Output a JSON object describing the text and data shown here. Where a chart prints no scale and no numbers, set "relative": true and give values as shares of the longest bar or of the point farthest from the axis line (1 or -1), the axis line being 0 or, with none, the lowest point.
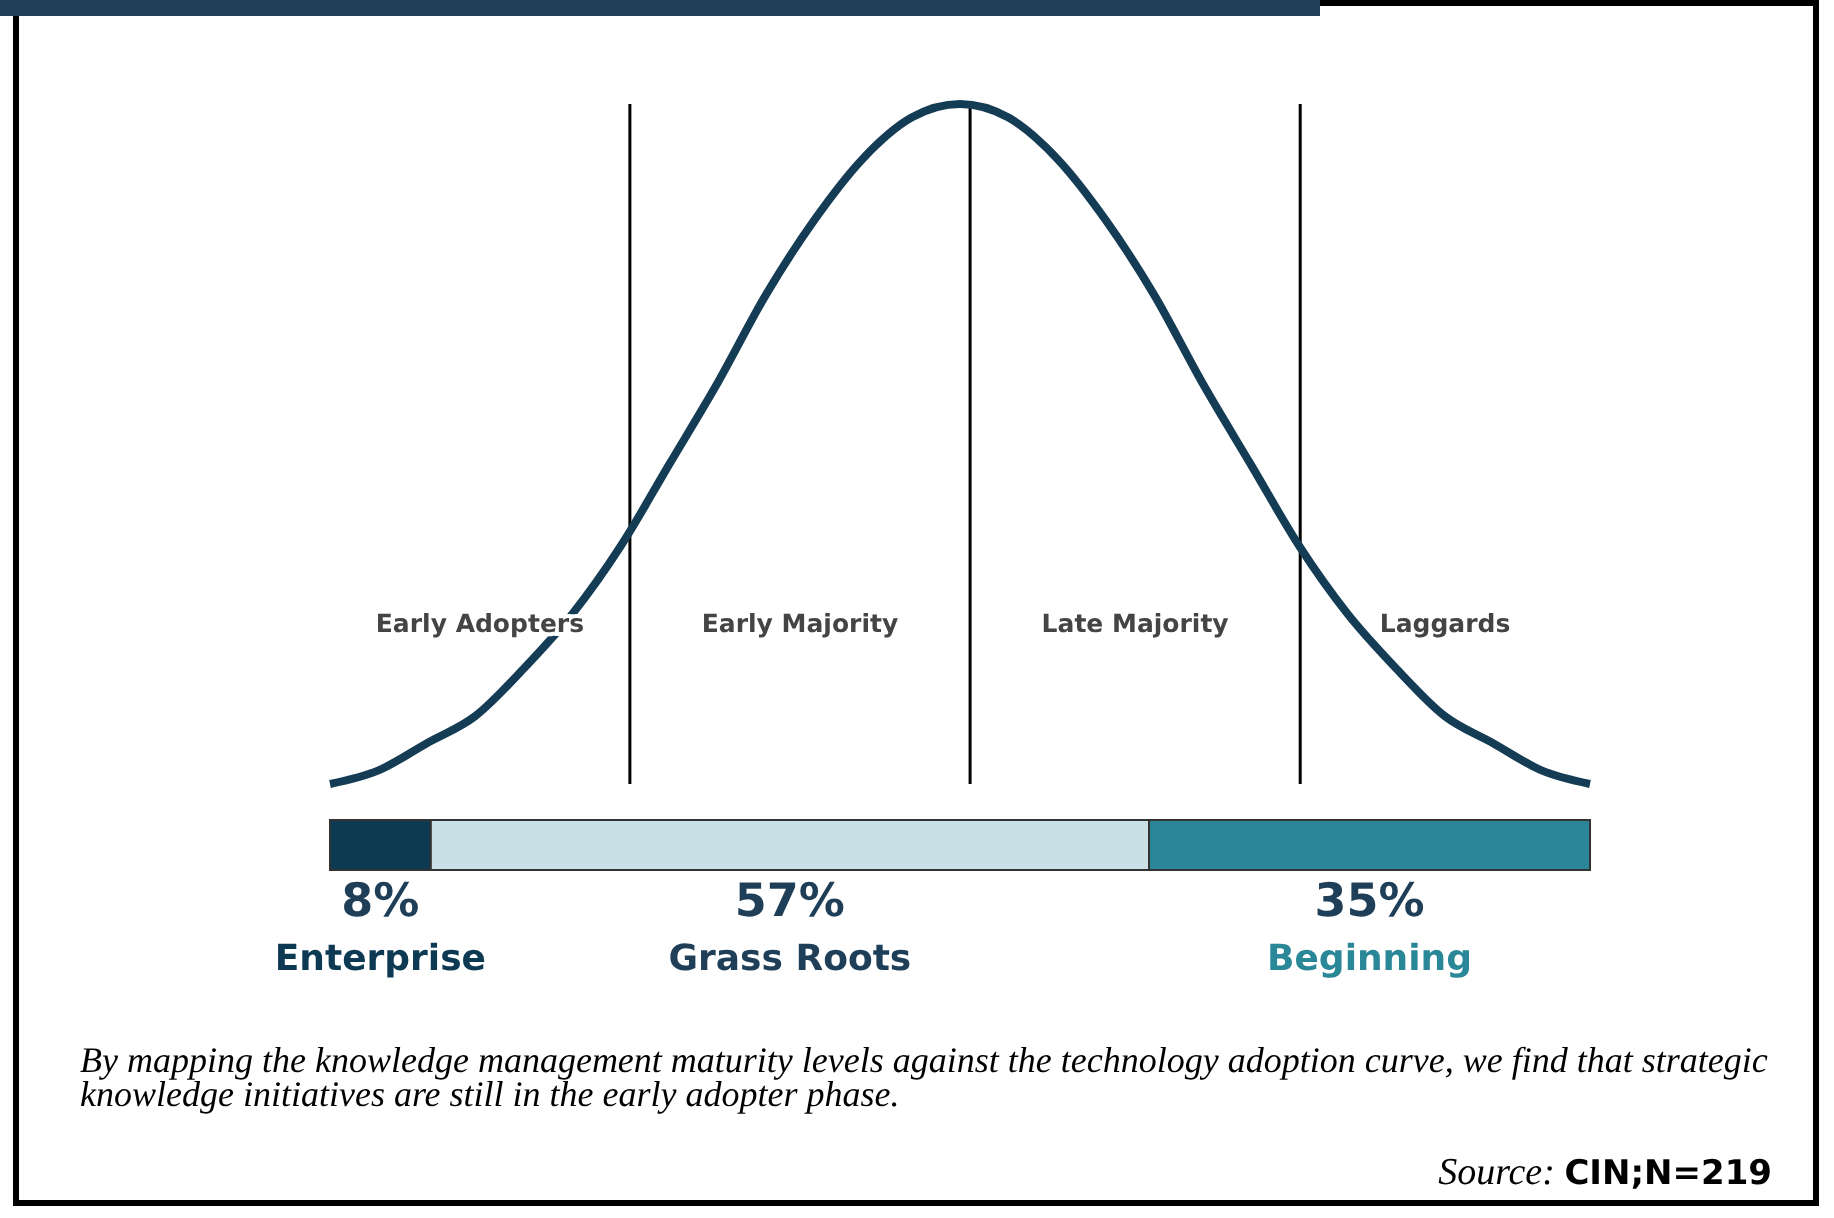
{
  "chart_data": [
    {
      "type": "line",
      "relative": true,
      "categories": [
        null,
        null,
        null,
        null,
        null,
        null,
        null,
        null,
        null,
        null,
        null,
        null,
        null,
        null,
        null,
        null,
        null,
        null,
        null,
        null,
        null,
        null,
        null,
        null,
        null,
        null,
        null
      ],
      "series": [
        {
          "color": "#143c55",
          "values": [
            0,
            0.02,
            0.06,
            0.1,
            0.17,
            0.25,
            0.35,
            0.47,
            0.59,
            0.72,
            0.83,
            0.92,
            0.98,
            1,
            0.98,
            0.92,
            0.83,
            0.72,
            0.59,
            0.47,
            0.35,
            0.25,
            0.17,
            0.1,
            0.06,
            0.02,
            0
          ]
        }
      ],
      "annotations": [
        "Early Adopters",
        "Early Majority",
        "Late Majority",
        "Laggards"
      ]
    },
    {
      "type": "bar",
      "orientation": "horizontal",
      "stacked": true,
      "categories": [
        null
      ],
      "series": [
        {
          "name": "Enterprise",
          "color": "#0d3a52",
          "values": [
            8
          ],
          "value_labels": [
            "8%"
          ]
        },
        {
          "name": "Grass Roots",
          "color": "#c9e1e6",
          "values": [
            57
          ],
          "value_labels": [
            "57%"
          ]
        },
        {
          "name": "Beginning",
          "color": "#2a8797",
          "values": [
            35
          ],
          "value_labels": [
            "35%"
          ]
        }
      ],
      "annotations": [
        "By mapping the knowledge management maturity levels against the technology adoption curve, we find that strategic knowledge initiatives are still in the early adopter phase.",
        "Source: CIN;N=219"
      ]
    }
  ]
}
